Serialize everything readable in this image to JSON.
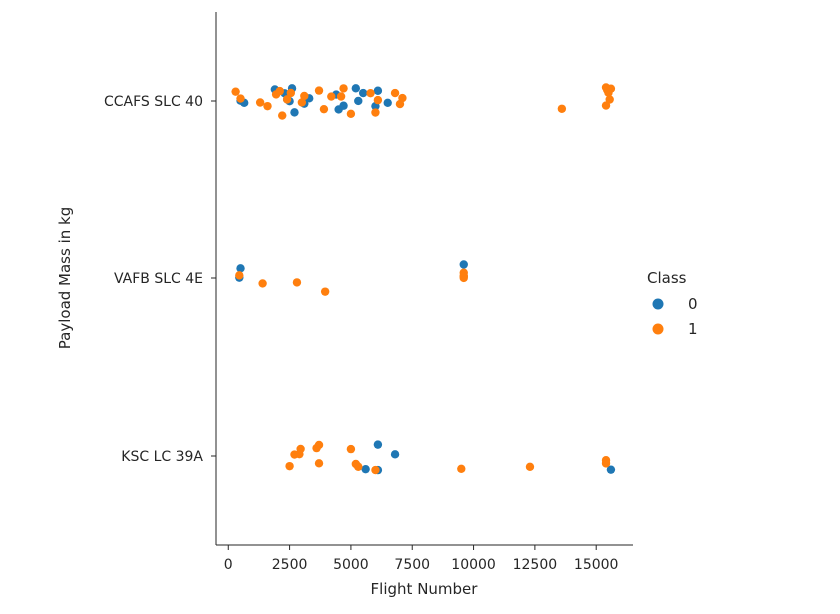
{
  "chart_data": {
    "type": "scatter",
    "title": "",
    "xlabel": "Flight Number",
    "ylabel": "Payload Mass in kg",
    "xlim": [
      -500,
      16500
    ],
    "x_ticks": [
      0,
      2500,
      5000,
      7500,
      10000,
      12500,
      15000
    ],
    "x_tick_labels": [
      "0",
      "2500",
      "5000",
      "7500",
      "10000",
      "12500",
      "15000"
    ],
    "categories": [
      "CCAFS SLC 40",
      "VAFB SLC 4E",
      "KSC LC 39A"
    ],
    "grid": false,
    "legend": {
      "title": "Class",
      "placement": "right",
      "entries": [
        {
          "label": "0",
          "color": "#1f77b4"
        },
        {
          "label": "1",
          "color": "#ff7f0e"
        }
      ]
    },
    "series": [
      {
        "class": "0",
        "color": "#1f77b4",
        "points": [
          {
            "x": 500,
            "y": "CCAFS SLC 40"
          },
          {
            "x": 650,
            "y": "CCAFS SLC 40"
          },
          {
            "x": 1900,
            "y": "CCAFS SLC 40"
          },
          {
            "x": 2300,
            "y": "CCAFS SLC 40"
          },
          {
            "x": 2400,
            "y": "CCAFS SLC 40"
          },
          {
            "x": 2500,
            "y": "CCAFS SLC 40"
          },
          {
            "x": 2600,
            "y": "CCAFS SLC 40"
          },
          {
            "x": 2700,
            "y": "CCAFS SLC 40"
          },
          {
            "x": 3100,
            "y": "CCAFS SLC 40"
          },
          {
            "x": 3300,
            "y": "CCAFS SLC 40"
          },
          {
            "x": 4400,
            "y": "CCAFS SLC 40"
          },
          {
            "x": 4500,
            "y": "CCAFS SLC 40"
          },
          {
            "x": 4700,
            "y": "CCAFS SLC 40"
          },
          {
            "x": 5200,
            "y": "CCAFS SLC 40"
          },
          {
            "x": 5300,
            "y": "CCAFS SLC 40"
          },
          {
            "x": 5500,
            "y": "CCAFS SLC 40"
          },
          {
            "x": 6000,
            "y": "CCAFS SLC 40"
          },
          {
            "x": 6100,
            "y": "CCAFS SLC 40"
          },
          {
            "x": 6500,
            "y": "CCAFS SLC 40"
          },
          {
            "x": 450,
            "y": "VAFB SLC 4E"
          },
          {
            "x": 500,
            "y": "VAFB SLC 4E"
          },
          {
            "x": 9600,
            "y": "VAFB SLC 4E"
          },
          {
            "x": 5600,
            "y": "KSC LC 39A"
          },
          {
            "x": 6100,
            "y": "KSC LC 39A"
          },
          {
            "x": 6100,
            "y": "KSC LC 39A"
          },
          {
            "x": 6800,
            "y": "KSC LC 39A"
          },
          {
            "x": 15600,
            "y": "KSC LC 39A"
          }
        ]
      },
      {
        "class": "1",
        "color": "#ff7f0e",
        "points": [
          {
            "x": 300,
            "y": "CCAFS SLC 40"
          },
          {
            "x": 500,
            "y": "CCAFS SLC 40"
          },
          {
            "x": 1300,
            "y": "CCAFS SLC 40"
          },
          {
            "x": 1600,
            "y": "CCAFS SLC 40"
          },
          {
            "x": 1950,
            "y": "CCAFS SLC 40"
          },
          {
            "x": 2100,
            "y": "CCAFS SLC 40"
          },
          {
            "x": 2200,
            "y": "CCAFS SLC 40"
          },
          {
            "x": 2400,
            "y": "CCAFS SLC 40"
          },
          {
            "x": 2550,
            "y": "CCAFS SLC 40"
          },
          {
            "x": 3000,
            "y": "CCAFS SLC 40"
          },
          {
            "x": 3100,
            "y": "CCAFS SLC 40"
          },
          {
            "x": 3700,
            "y": "CCAFS SLC 40"
          },
          {
            "x": 3900,
            "y": "CCAFS SLC 40"
          },
          {
            "x": 4200,
            "y": "CCAFS SLC 40"
          },
          {
            "x": 4600,
            "y": "CCAFS SLC 40"
          },
          {
            "x": 4700,
            "y": "CCAFS SLC 40"
          },
          {
            "x": 5000,
            "y": "CCAFS SLC 40"
          },
          {
            "x": 5800,
            "y": "CCAFS SLC 40"
          },
          {
            "x": 6000,
            "y": "CCAFS SLC 40"
          },
          {
            "x": 6100,
            "y": "CCAFS SLC 40"
          },
          {
            "x": 6800,
            "y": "CCAFS SLC 40"
          },
          {
            "x": 7000,
            "y": "CCAFS SLC 40"
          },
          {
            "x": 7100,
            "y": "CCAFS SLC 40"
          },
          {
            "x": 13600,
            "y": "CCAFS SLC 40"
          },
          {
            "x": 15400,
            "y": "CCAFS SLC 40"
          },
          {
            "x": 15450,
            "y": "CCAFS SLC 40"
          },
          {
            "x": 15500,
            "y": "CCAFS SLC 40"
          },
          {
            "x": 15550,
            "y": "CCAFS SLC 40"
          },
          {
            "x": 15600,
            "y": "CCAFS SLC 40"
          },
          {
            "x": 15400,
            "y": "CCAFS SLC 40"
          },
          {
            "x": 450,
            "y": "VAFB SLC 4E"
          },
          {
            "x": 1400,
            "y": "VAFB SLC 4E"
          },
          {
            "x": 2800,
            "y": "VAFB SLC 4E"
          },
          {
            "x": 3950,
            "y": "VAFB SLC 4E"
          },
          {
            "x": 9600,
            "y": "VAFB SLC 4E"
          },
          {
            "x": 9600,
            "y": "VAFB SLC 4E"
          },
          {
            "x": 9600,
            "y": "VAFB SLC 4E"
          },
          {
            "x": 9600,
            "y": "VAFB SLC 4E"
          },
          {
            "x": 2500,
            "y": "KSC LC 39A"
          },
          {
            "x": 2700,
            "y": "KSC LC 39A"
          },
          {
            "x": 2900,
            "y": "KSC LC 39A"
          },
          {
            "x": 2950,
            "y": "KSC LC 39A"
          },
          {
            "x": 3600,
            "y": "KSC LC 39A"
          },
          {
            "x": 3700,
            "y": "KSC LC 39A"
          },
          {
            "x": 3700,
            "y": "KSC LC 39A"
          },
          {
            "x": 5000,
            "y": "KSC LC 39A"
          },
          {
            "x": 5200,
            "y": "KSC LC 39A"
          },
          {
            "x": 5300,
            "y": "KSC LC 39A"
          },
          {
            "x": 6000,
            "y": "KSC LC 39A"
          },
          {
            "x": 9500,
            "y": "KSC LC 39A"
          },
          {
            "x": 12300,
            "y": "KSC LC 39A"
          },
          {
            "x": 15400,
            "y": "KSC LC 39A"
          },
          {
            "x": 15400,
            "y": "KSC LC 39A"
          }
        ]
      }
    ]
  }
}
